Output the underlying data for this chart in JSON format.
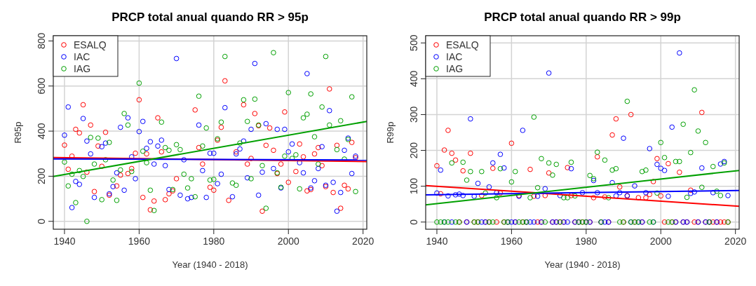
{
  "chart_data": [
    {
      "type": "scatter",
      "title": "PRCP total anual quando RR > 95p",
      "xlabel": "Year (1940 - 2018)",
      "ylabel": "R95p",
      "xlim": [
        1937,
        2021
      ],
      "ylim": [
        -35,
        823
      ],
      "xticks": [
        1940,
        1960,
        1980,
        2000,
        2020
      ],
      "yticks": [
        0,
        200,
        400,
        600,
        800
      ],
      "grid": true,
      "legend": "top left",
      "marker": "circle",
      "series": [
        {
          "name": "ESALQ",
          "color": "#ff0000",
          "x": [
            1940,
            1941,
            1942,
            1943,
            1944,
            1945,
            1946,
            1947,
            1948,
            1949,
            1950,
            1951,
            1952,
            1954,
            1955,
            1957,
            1958,
            1959,
            1960,
            1961,
            1962,
            1963,
            1964,
            1965,
            1966,
            1967,
            1968,
            1969,
            1970,
            1975,
            1976,
            1977,
            1979,
            1980,
            1981,
            1982,
            1983,
            1984,
            1986,
            1988,
            1989,
            1990,
            1991,
            1992,
            1993,
            1994,
            1995,
            1996,
            1997,
            1998,
            1999,
            2000,
            2002,
            2003,
            2004,
            2005,
            2006,
            2007,
            2008,
            2009,
            2010,
            2011,
            2012,
            2013,
            2014,
            2015,
            2016,
            2017,
            2018
          ],
          "values": [
            338,
            231,
            289,
            408,
            392,
            517,
            218,
            427,
            132,
            334,
            244,
            395,
            116,
            157,
            205,
            212,
            234,
            302,
            539,
            106,
            299,
            51,
            90,
            459,
            308,
            96,
            122,
            135,
            189,
            494,
            327,
            254,
            151,
            138,
            360,
            417,
            623,
            93,
            308,
            517,
            254,
            279,
            478,
            424,
            45,
            337,
            414,
            315,
            212,
            254,
            485,
            173,
            221,
            343,
            286,
            135,
            141,
            299,
            327,
            247,
            154,
            587,
            128,
            337,
            58,
            160,
            144,
            350,
            282
          ]
        },
        {
          "name": "IAC",
          "color": "#0000ff",
          "x": [
            1940,
            1941,
            1942,
            1943,
            1944,
            1945,
            1946,
            1947,
            1948,
            1950,
            1951,
            1952,
            1953,
            1954,
            1955,
            1956,
            1957,
            1958,
            1959,
            1960,
            1961,
            1962,
            1963,
            1964,
            1965,
            1966,
            1967,
            1968,
            1970,
            1971,
            1972,
            1973,
            1974,
            1976,
            1977,
            1978,
            1979,
            1980,
            1981,
            1982,
            1983,
            1985,
            1986,
            1987,
            1988,
            1989,
            1990,
            1991,
            1992,
            1993,
            1994,
            1996,
            1997,
            1998,
            1999,
            2000,
            2001,
            2003,
            2004,
            2005,
            2006,
            2007,
            2008,
            2009,
            2010,
            2011,
            2012,
            2013,
            2014,
            2015,
            2016,
            2017,
            2018
          ],
          "values": [
            382,
            507,
            61,
            177,
            164,
            456,
            356,
            299,
            106,
            331,
            347,
            122,
            154,
            215,
            417,
            138,
            459,
            286,
            189,
            398,
            443,
            324,
            353,
            254,
            334,
            360,
            247,
            141,
            722,
            116,
            273,
            100,
            106,
            427,
            225,
            106,
            302,
            302,
            167,
            209,
            504,
            109,
            299,
            321,
            356,
            193,
            408,
            700,
            116,
            218,
            433,
            234,
            408,
            148,
            408,
            308,
            343,
            260,
            215,
            655,
            148,
            180,
            234,
            331,
            160,
            491,
            173,
            45,
            128,
            315,
            369,
            212,
            289
          ]
        },
        {
          "name": "IAG",
          "color": "#00a000",
          "x": [
            1940,
            1941,
            1942,
            1943,
            1944,
            1945,
            1946,
            1947,
            1948,
            1949,
            1950,
            1951,
            1952,
            1953,
            1954,
            1955,
            1956,
            1957,
            1958,
            1960,
            1961,
            1962,
            1963,
            1964,
            1966,
            1967,
            1968,
            1969,
            1970,
            1971,
            1972,
            1973,
            1974,
            1975,
            1976,
            1977,
            1978,
            1979,
            1980,
            1981,
            1982,
            1983,
            1985,
            1986,
            1987,
            1988,
            1989,
            1990,
            1991,
            1992,
            1993,
            1994,
            1996,
            1997,
            1998,
            1999,
            2000,
            2001,
            2002,
            2003,
            2004,
            2005,
            2006,
            2007,
            2008,
            2009,
            2010,
            2011,
            2013,
            2014,
            2015,
            2016,
            2017,
            2018
          ],
          "values": [
            263,
            157,
            209,
            83,
            225,
            199,
            0,
            372,
            254,
            369,
            96,
            273,
            350,
            183,
            93,
            228,
            478,
            427,
            221,
            613,
            311,
            260,
            138,
            48,
            440,
            327,
            315,
            141,
            340,
            318,
            209,
            148,
            189,
            109,
            555,
            334,
            414,
            183,
            186,
            366,
            440,
            731,
            170,
            160,
            347,
            539,
            443,
            189,
            542,
            427,
            247,
            58,
            748,
            215,
            151,
            289,
            571,
            279,
            295,
            144,
            459,
            475,
            565,
            375,
            254,
            507,
            731,
            427,
            318,
            446,
            276,
            363,
            552,
            132
          ]
        },
        {
          "type": "line",
          "marker": "none",
          "color": "#ff0000",
          "x": [
            1937,
            2021
          ],
          "values": [
            283,
            265
          ]
        },
        {
          "type": "line",
          "marker": "none",
          "color": "#0000ff",
          "x": [
            1937,
            2021
          ],
          "values": [
            277,
            272
          ]
        },
        {
          "type": "line",
          "marker": "none",
          "color": "#00a000",
          "x": [
            1937,
            2021
          ],
          "values": [
            199,
            443
          ]
        }
      ]
    },
    {
      "type": "scatter",
      "title": "PRCP total anual quando RR > 99p",
      "xlabel": "Year (1940 - 2018)",
      "ylabel": "R99p",
      "xlim": [
        1937,
        2021
      ],
      "ylim": [
        -20,
        520
      ],
      "xticks": [
        1940,
        1960,
        1980,
        2000,
        2020
      ],
      "yticks": [
        0,
        100,
        200,
        300,
        400,
        500
      ],
      "grid": true,
      "legend": "top left",
      "marker": "circle",
      "series": [
        {
          "name": "ESALQ",
          "color": "#ff0000",
          "x": [
            1940,
            1941,
            1942,
            1943,
            1944,
            1945,
            1946,
            1947,
            1948,
            1949,
            1950,
            1951,
            1952,
            1953,
            1954,
            1955,
            1956,
            1957,
            1958,
            1959,
            1960,
            1961,
            1962,
            1963,
            1964,
            1965,
            1966,
            1967,
            1968,
            1969,
            1970,
            1971,
            1972,
            1973,
            1974,
            1975,
            1976,
            1977,
            1978,
            1979,
            1980,
            1981,
            1982,
            1983,
            1984,
            1985,
            1986,
            1987,
            1988,
            1989,
            1990,
            1991,
            1992,
            1993,
            1994,
            1995,
            1996,
            1997,
            1998,
            1999,
            2000,
            2001,
            2002,
            2003,
            2004,
            2005,
            2006,
            2007,
            2008,
            2009,
            2010,
            2011,
            2012,
            2013,
            2014,
            2015,
            2016,
            2017,
            2018
          ],
          "values": [
            157,
            79,
            201,
            256,
            192,
            173,
            0,
            143,
            0,
            192,
            0,
            0,
            74,
            0,
            0,
            150,
            0,
            81,
            0,
            0,
            220,
            0,
            74,
            0,
            0,
            147,
            72,
            0,
            0,
            74,
            137,
            0,
            0,
            0,
            0,
            152,
            74,
            0,
            0,
            0,
            0,
            0,
            68,
            182,
            0,
            70,
            0,
            243,
            288,
            98,
            0,
            74,
            300,
            0,
            68,
            0,
            68,
            77,
            113,
            177,
            73,
            0,
            163,
            0,
            0,
            139,
            0,
            0,
            89,
            0,
            0,
            306,
            0,
            0,
            0,
            0,
            0,
            0,
            0
          ]
        },
        {
          "name": "IAC",
          "color": "#0000ff",
          "x": [
            1940,
            1941,
            1942,
            1943,
            1944,
            1945,
            1946,
            1947,
            1948,
            1949,
            1950,
            1951,
            1952,
            1953,
            1954,
            1955,
            1956,
            1957,
            1958,
            1959,
            1960,
            1961,
            1962,
            1963,
            1964,
            1965,
            1966,
            1967,
            1968,
            1969,
            1970,
            1971,
            1972,
            1973,
            1974,
            1975,
            1976,
            1977,
            1978,
            1979,
            1980,
            1981,
            1982,
            1983,
            1984,
            1985,
            1986,
            1987,
            1988,
            1989,
            1990,
            1991,
            1992,
            1993,
            1994,
            1995,
            1996,
            1997,
            1998,
            1999,
            2000,
            2001,
            2002,
            2003,
            2004,
            2005,
            2006,
            2007,
            2008,
            2009,
            2010,
            2011,
            2012,
            2013,
            2014,
            2015,
            2016,
            2017,
            2018
          ],
          "values": [
            81,
            145,
            0,
            73,
            0,
            76,
            78,
            74,
            0,
            288,
            72,
            108,
            0,
            0,
            98,
            165,
            82,
            189,
            151,
            0,
            0,
            0,
            72,
            256,
            0,
            0,
            0,
            72,
            0,
            93,
            416,
            0,
            0,
            74,
            0,
            0,
            149,
            0,
            0,
            82,
            0,
            0,
            116,
            82,
            0,
            0,
            0,
            110,
            73,
            82,
            234,
            73,
            0,
            101,
            0,
            0,
            82,
            205,
            0,
            161,
            150,
            144,
            72,
            265,
            0,
            472,
            0,
            0,
            80,
            84,
            0,
            151,
            0,
            0,
            82,
            0,
            162,
            169,
            74
          ]
        },
        {
          "name": "IAG",
          "color": "#00a000",
          "x": [
            1940,
            1941,
            1942,
            1943,
            1944,
            1945,
            1946,
            1947,
            1948,
            1949,
            1950,
            1951,
            1952,
            1953,
            1954,
            1955,
            1956,
            1957,
            1958,
            1959,
            1960,
            1961,
            1962,
            1963,
            1964,
            1965,
            1966,
            1967,
            1968,
            1969,
            1970,
            1971,
            1972,
            1973,
            1974,
            1975,
            1976,
            1977,
            1978,
            1979,
            1980,
            1981,
            1982,
            1983,
            1984,
            1985,
            1986,
            1987,
            1988,
            1989,
            1990,
            1991,
            1992,
            1993,
            1994,
            1995,
            1996,
            1997,
            1998,
            1999,
            2000,
            2001,
            2002,
            2003,
            2004,
            2005,
            2006,
            2007,
            2008,
            2009,
            2010,
            2011,
            2012,
            2013,
            2014,
            2015,
            2016,
            2017,
            2018
          ],
          "values": [
            0,
            0,
            0,
            0,
            165,
            0,
            0,
            167,
            117,
            141,
            0,
            0,
            141,
            81,
            0,
            0,
            68,
            149,
            0,
            0,
            112,
            141,
            0,
            0,
            0,
            68,
            293,
            96,
            177,
            0,
            165,
            131,
            161,
            0,
            68,
            68,
            167,
            73,
            0,
            0,
            0,
            130,
            121,
            195,
            0,
            173,
            68,
            145,
            149,
            0,
            0,
            337,
            0,
            0,
            0,
            141,
            145,
            0,
            0,
            81,
            222,
            180,
            0,
            0,
            169,
            169,
            273,
            69,
            194,
            369,
            254,
            97,
            222,
            0,
            155,
            86,
            74,
            165,
            0
          ]
        },
        {
          "type": "line",
          "marker": "none",
          "color": "#ff0000",
          "x": [
            1937,
            2021
          ],
          "values": [
            102,
            44
          ]
        },
        {
          "type": "line",
          "marker": "none",
          "color": "#0000ff",
          "x": [
            1937,
            2021
          ],
          "values": [
            76,
            88
          ]
        },
        {
          "type": "line",
          "marker": "none",
          "color": "#00a000",
          "x": [
            1937,
            2021
          ],
          "values": [
            48,
            144
          ]
        }
      ]
    }
  ]
}
